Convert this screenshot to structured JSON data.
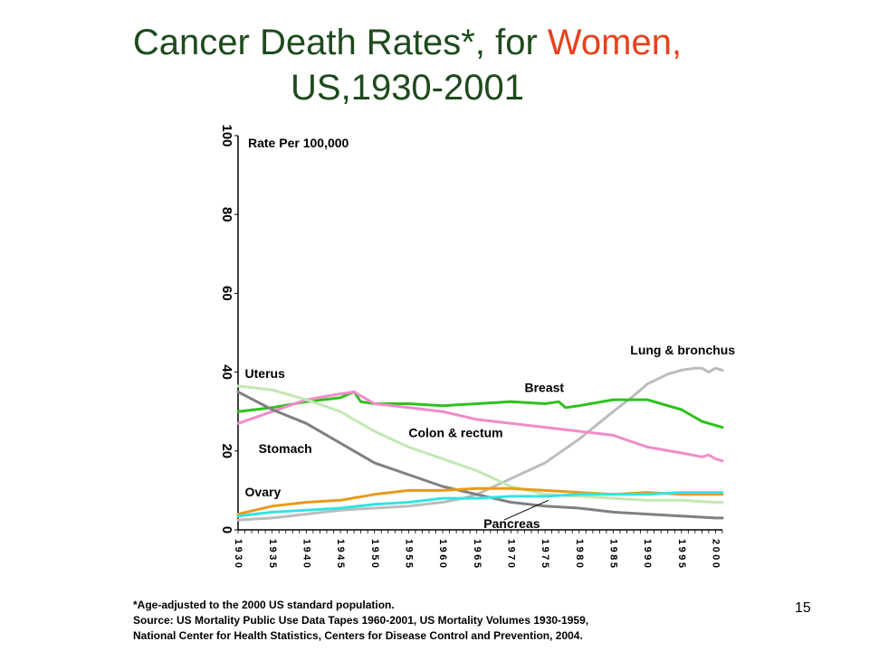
{
  "title": {
    "main": "Cancer Death Rates*, for ",
    "accent": "Women,",
    "line2": "US,1930-2001"
  },
  "colors": {
    "title": "#1e4a1e",
    "accent": "#e8401c"
  },
  "chart_data": {
    "type": "line",
    "ylabel": "Rate Per 100,000",
    "ylim": [
      0,
      100
    ],
    "xlim": [
      1930,
      2001
    ],
    "y_ticks": [
      "0",
      "20",
      "40",
      "60",
      "80",
      "100"
    ],
    "x_ticks": [
      "1930",
      "1935",
      "1940",
      "1945",
      "1950",
      "1955",
      "1960",
      "1965",
      "1970",
      "1975",
      "1980",
      "1985",
      "1990",
      "1995",
      "2000"
    ],
    "series": [
      {
        "name": "Lung & bronchus",
        "color": "#bcbcbc",
        "x": [
          1930,
          1935,
          1940,
          1945,
          1950,
          1955,
          1960,
          1963,
          1965,
          1970,
          1975,
          1980,
          1985,
          1988,
          1990,
          1993,
          1995,
          1997,
          1998,
          1999,
          2000,
          2001
        ],
        "y": [
          2.5,
          3,
          4,
          5,
          5.5,
          6,
          7,
          8,
          9,
          13,
          17,
          23,
          30,
          34,
          37,
          39.5,
          40.5,
          41,
          41,
          40,
          41,
          40.5
        ]
      },
      {
        "name": "Breast",
        "color": "#2ec21c",
        "x": [
          1930,
          1935,
          1940,
          1945,
          1947,
          1948,
          1950,
          1955,
          1960,
          1965,
          1970,
          1975,
          1977,
          1978,
          1980,
          1985,
          1990,
          1992,
          1995,
          1997,
          1998,
          2000,
          2001
        ],
        "y": [
          30,
          31,
          32.5,
          33.5,
          35,
          32.5,
          32,
          32,
          31.5,
          32,
          32.5,
          32,
          32.5,
          31,
          31.5,
          33,
          33,
          32,
          30.5,
          28.5,
          27.5,
          26.5,
          26
        ]
      },
      {
        "name": "Colon & rectum",
        "color": "#f08cc8",
        "x": [
          1930,
          1935,
          1940,
          1945,
          1947,
          1950,
          1955,
          1960,
          1965,
          1970,
          1975,
          1980,
          1985,
          1990,
          1995,
          1998,
          1999,
          2000,
          2001
        ],
        "y": [
          27,
          30,
          33,
          34.5,
          35,
          32,
          31,
          30,
          28,
          27,
          26,
          25,
          24,
          21,
          19.5,
          18.5,
          19,
          18,
          17.5
        ]
      },
      {
        "name": "Uterus",
        "color": "#c3e8b3",
        "x": [
          1930,
          1935,
          1940,
          1945,
          1950,
          1955,
          1960,
          1965,
          1970,
          1975,
          1980,
          1985,
          1990,
          1995,
          2000,
          2001
        ],
        "y": [
          36.5,
          35.5,
          33,
          30,
          25,
          21,
          18,
          15,
          11,
          9,
          8.5,
          8,
          7.5,
          7.5,
          7,
          7
        ]
      },
      {
        "name": "Stomach",
        "color": "#808080",
        "x": [
          1930,
          1935,
          1940,
          1945,
          1950,
          1955,
          1960,
          1965,
          1970,
          1975,
          1980,
          1985,
          1990,
          1995,
          2000,
          2001
        ],
        "y": [
          35,
          30.5,
          27,
          22,
          17,
          14,
          11,
          9,
          7,
          6,
          5.5,
          4.5,
          4,
          3.5,
          3,
          3
        ]
      },
      {
        "name": "Ovary",
        "color": "#e89b1a",
        "x": [
          1930,
          1935,
          1940,
          1945,
          1950,
          1955,
          1960,
          1965,
          1970,
          1975,
          1980,
          1985,
          1990,
          1995,
          2000,
          2001
        ],
        "y": [
          4,
          6,
          7,
          7.5,
          9,
          10,
          10,
          10.5,
          10.5,
          10,
          9.5,
          9,
          9.5,
          9,
          9,
          9
        ]
      },
      {
        "name": "Pancreas",
        "color": "#36e2e2",
        "x": [
          1930,
          1935,
          1940,
          1945,
          1950,
          1955,
          1960,
          1965,
          1970,
          1975,
          1980,
          1985,
          1990,
          1995,
          2000,
          2001
        ],
        "y": [
          3.5,
          4.5,
          5,
          5.5,
          6.5,
          7,
          8,
          8,
          8.5,
          8.5,
          9,
          9,
          9,
          9.5,
          9.5,
          9.5
        ]
      }
    ],
    "labels": [
      {
        "text": "Lung & bronchus",
        "x": 1987.5,
        "y": 44.5
      },
      {
        "text": "Uterus",
        "x": 1931,
        "y": 38.5
      },
      {
        "text": "Breast",
        "x": 1972,
        "y": 35
      },
      {
        "text": "Colon & rectum",
        "x": 1955,
        "y": 23.5
      },
      {
        "text": "Stomach",
        "x": 1933,
        "y": 19.5
      },
      {
        "text": "Ovary",
        "x": 1931,
        "y": 8.5
      },
      {
        "text": "Pancreas",
        "x": 1966,
        "y": 0.5
      }
    ],
    "pointer": {
      "from": [
        1969,
        2.5
      ],
      "to": [
        1975.5,
        7.5
      ]
    }
  },
  "footnote": [
    "*Age-adjusted to the 2000 US standard population.",
    "Source:  US Mortality Public Use Data Tapes 1960-2001, US Mortality Volumes 1930-1959,",
    "National Center for Health Statistics, Centers for Disease Control and Prevention, 2004."
  ],
  "page_number": "15"
}
